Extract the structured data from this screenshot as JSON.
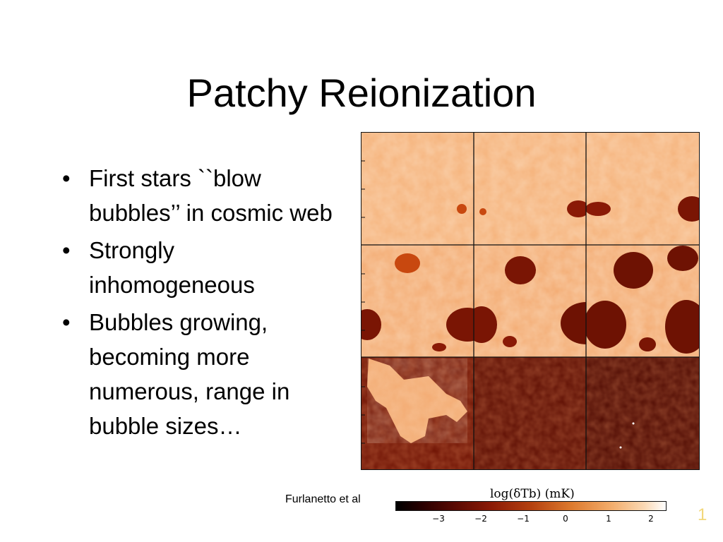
{
  "slide": {
    "title": "Patchy Reionization",
    "bullets": [
      "First stars ``blow bubbles’’ in cosmic web",
      "Strongly inhomogeneous",
      "Bubbles growing, becoming more numerous, range in bubble sizes…"
    ],
    "bullet_char": "•",
    "credit": "Furlanetto et al",
    "slide_number": "1"
  },
  "figure": {
    "colorbar_label": "log(δTb) (mK)",
    "colorbar_ticks": [
      "−3",
      "−2",
      "−1",
      "0",
      "1",
      "2"
    ],
    "colors": {
      "neutral_light": "#f6b77f",
      "neutral_mid": "#efa26a",
      "ionized_dark": "#7a1504",
      "deep_dark": "#4a0b02"
    }
  }
}
